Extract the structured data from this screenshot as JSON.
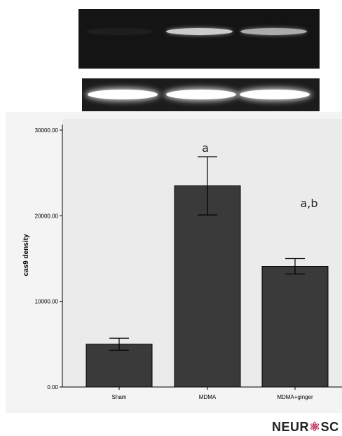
{
  "chart_data": {
    "type": "bar",
    "ylabel": "cas9 density",
    "xlabel": "",
    "ylim": [
      0,
      30000
    ],
    "yticks": [
      0,
      10000,
      20000,
      30000
    ],
    "ytick_labels": [
      "0.00",
      "10000.00",
      "20000.00",
      "30000.00"
    ],
    "categories": [
      "Sham",
      "MDMA",
      "MDMA+ginger"
    ],
    "values": [
      5000,
      23500,
      14100
    ],
    "errors": [
      700,
      3400,
      900
    ],
    "annotations": [
      "",
      "a",
      "a,b"
    ],
    "colors": {
      "bar": "#3a3a3a",
      "plot_bg": "#ebebeb",
      "gel_bg": "#141414"
    }
  },
  "gel": {
    "top_band_intensity": [
      0.05,
      0.85,
      0.7
    ],
    "bottom_band_intensity": [
      1.0,
      1.0,
      1.0
    ]
  },
  "watermark": {
    "prefix": "NEUR",
    "suffix": "SC"
  }
}
